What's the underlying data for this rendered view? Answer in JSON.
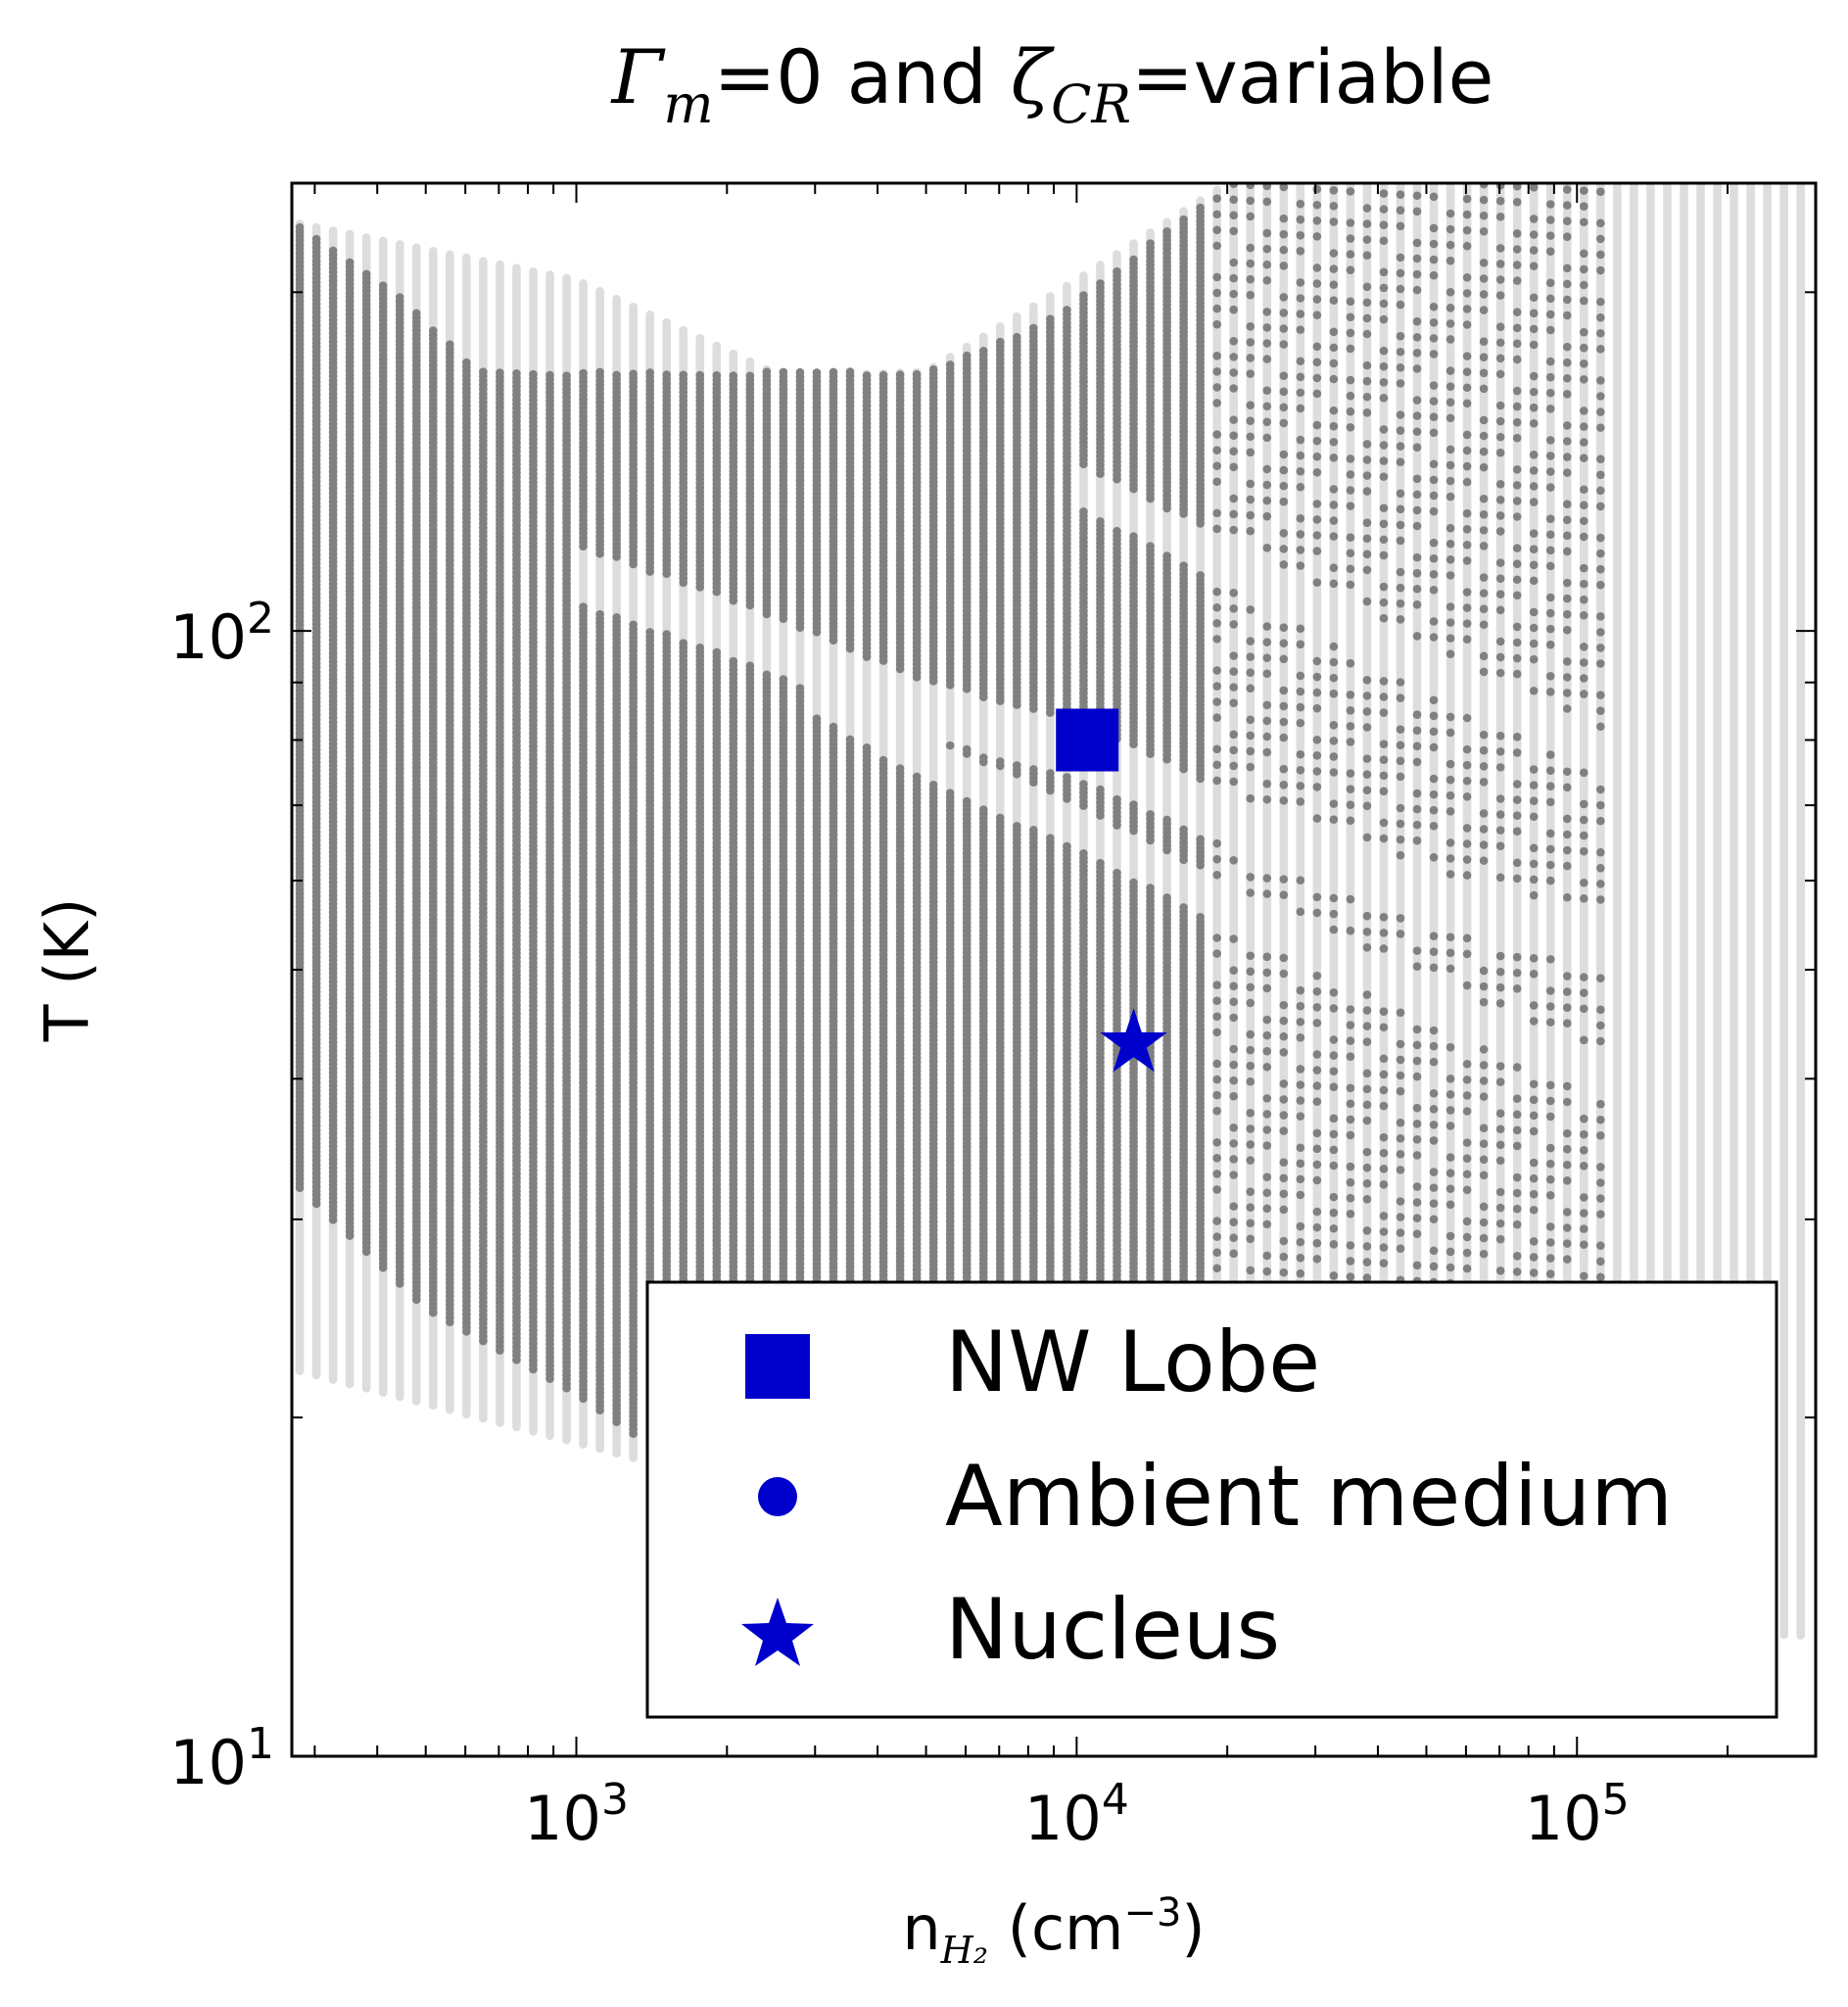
{
  "chart_data": {
    "type": "scatter",
    "title": {
      "gamma_symbol": "Γ",
      "gamma_subscript": "m",
      "middle": "=0 and ",
      "zeta_symbol": "ζ",
      "zeta_subscript": "CR",
      "end": "=variable"
    },
    "xlabel": {
      "prefix": "n",
      "subscript": "H₂",
      "suffix": " (cm",
      "superscript": "−3",
      "close": ")"
    },
    "ylabel": "T (K)",
    "xscale": "log",
    "yscale": "log",
    "xlim": [
      270,
      300000
    ],
    "ylim": [
      10,
      250
    ],
    "x_ticks": [
      {
        "value": 1000,
        "base": "10",
        "exp": "3"
      },
      {
        "value": 10000,
        "base": "10",
        "exp": "4"
      },
      {
        "value": 100000,
        "base": "10",
        "exp": "5"
      }
    ],
    "y_ticks": [
      {
        "value": 10,
        "base": "10",
        "exp": "1"
      },
      {
        "value": 100,
        "base": "10",
        "exp": "2"
      }
    ],
    "grid": false,
    "legend": {
      "placement": "lower-right",
      "entries": [
        {
          "label": "NW Lobe",
          "marker": "square"
        },
        {
          "label": "Ambient medium",
          "marker": "circle"
        },
        {
          "label": "Nucleus",
          "marker": "star"
        }
      ]
    },
    "colors": {
      "all_models": "#dddddd",
      "allowed_models": "#808080",
      "markers": "#0000cc"
    },
    "model_grid": {
      "description_counts": {
        "x_columns_per_decade": 30,
        "rows": 80
      },
      "light_region": {
        "x_range": [
          280,
          290000
        ],
        "t_max": [
          [
            280,
            230
          ],
          [
            1000,
            205
          ],
          [
            2600,
            168
          ],
          [
            5000,
            170
          ],
          [
            10000,
            205
          ],
          [
            20000,
            250
          ],
          [
            290000,
            250
          ]
        ],
        "t_min": [
          [
            280,
            22
          ],
          [
            1000,
            19
          ],
          [
            2000,
            17.5
          ],
          [
            10000,
            14
          ],
          [
            100000,
            13
          ],
          [
            290000,
            12.8
          ]
        ]
      },
      "dark_region": {
        "x_range": [
          280,
          112000
        ],
        "t_max": [
          [
            280,
            230
          ],
          [
            470,
            195
          ],
          [
            630,
            170
          ],
          [
            1000,
            170
          ],
          [
            5000,
            170
          ],
          [
            9000,
            190
          ],
          [
            20000,
            250
          ],
          [
            112000,
            250
          ]
        ],
        "t_min": [
          [
            280,
            32
          ],
          [
            500,
            25
          ],
          [
            1000,
            21
          ],
          [
            1500,
            18.5
          ],
          [
            3000,
            17
          ],
          [
            10000,
            15
          ],
          [
            112000,
            14
          ]
        ],
        "gaps": [
          {
            "points": [
              [
                1000,
                112
              ],
              [
                2000,
                101
              ],
              [
                5000,
                85
              ],
              [
                10000,
                78.5
              ],
              [
                20000,
                68
              ],
              [
                50000,
                58
              ],
              [
                112000,
                53
              ]
            ],
            "width_dex": 0.025
          },
          {
            "points": [
              [
                3000,
                88
              ],
              [
                5000,
                77
              ],
              [
                10000,
                67
              ],
              [
                20000,
                57
              ],
              [
                50000,
                47
              ],
              [
                112000,
                40
              ]
            ],
            "width_dex": 0.02
          },
          {
            "points": [
              [
                10000,
                135
              ],
              [
                20000,
                115
              ],
              [
                50000,
                92
              ],
              [
                112000,
                78
              ]
            ],
            "width_dex": 0.02
          }
        ]
      }
    },
    "points": [
      {
        "name": "NW Lobe",
        "marker": "square",
        "x": 10500,
        "y": 80
      },
      {
        "name": "Nucleus",
        "marker": "star",
        "x": 13000,
        "y": 43
      }
    ]
  }
}
